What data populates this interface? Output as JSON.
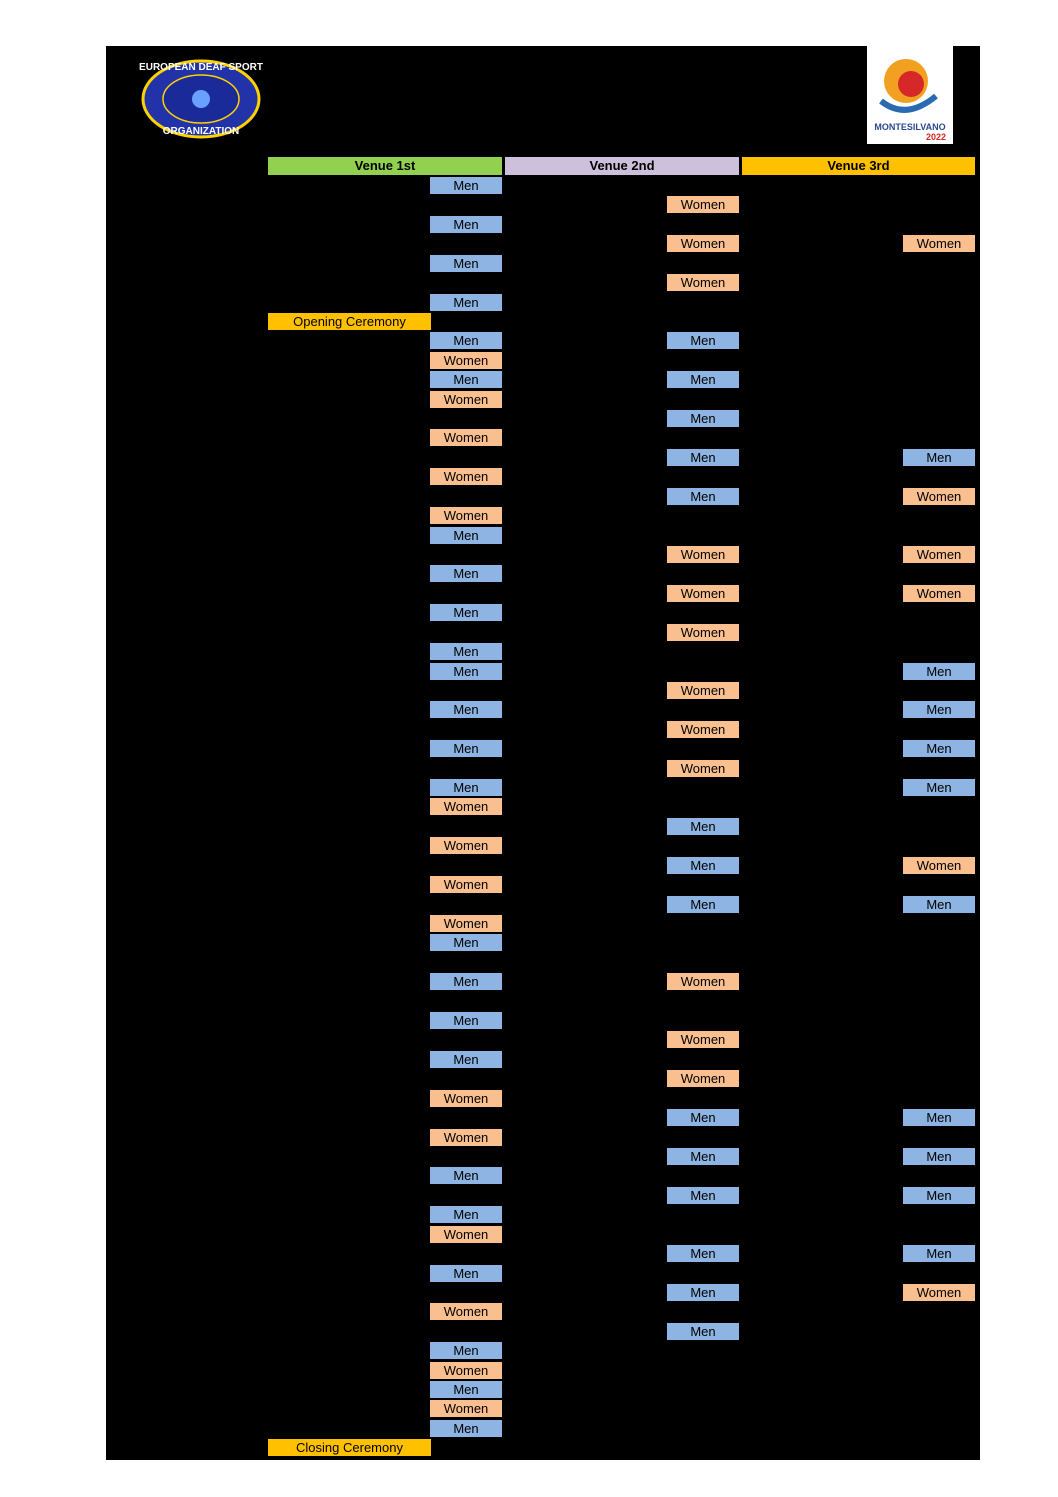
{
  "logos": {
    "edso_top": "EUROPEAN DEAF SPORT",
    "edso_bottom": "ORGANIZATION",
    "city": "MONTESILVANO",
    "year": "2022"
  },
  "venues": [
    "Venue 1st",
    "Venue 2nd",
    "Venue 3rd"
  ],
  "rows": [
    {
      "venue1": "Men"
    },
    {
      "venue2": "Women"
    },
    {
      "venue1": "Men"
    },
    {
      "venue2": "Women",
      "venue3": "Women"
    },
    {
      "venue1": "Men"
    },
    {
      "venue2": "Women"
    },
    {
      "venue1": "Men"
    },
    {
      "ceremony": "Opening Ceremony"
    },
    {
      "venue1": "Men",
      "venue2": "Men"
    },
    {
      "venue1": "Women"
    },
    {
      "venue1": "Men",
      "venue2": "Men"
    },
    {
      "venue1": "Women"
    },
    {
      "venue2": "Men"
    },
    {
      "venue1": "Women"
    },
    {
      "venue2": "Men",
      "venue3": "Men"
    },
    {
      "venue1": "Women"
    },
    {
      "venue2": "Men",
      "venue3": "Women"
    },
    {
      "venue1": "Women"
    },
    {
      "venue1": "Men"
    },
    {
      "venue2": "Women",
      "venue3": "Women"
    },
    {
      "venue1": "Men"
    },
    {
      "venue2": "Women",
      "venue3": "Women"
    },
    {
      "venue1": "Men"
    },
    {
      "venue2": "Women"
    },
    {
      "venue1": "Men"
    },
    {
      "venue1": "Men",
      "venue3": "Men"
    },
    {
      "venue2": "Women"
    },
    {
      "venue1": "Men",
      "venue3": "Men"
    },
    {
      "venue2": "Women"
    },
    {
      "venue1": "Men",
      "venue3": "Men"
    },
    {
      "venue2": "Women"
    },
    {
      "venue1": "Men",
      "venue3": "Men"
    },
    {
      "venue1": "Women"
    },
    {
      "venue2": "Men"
    },
    {
      "venue1": "Women"
    },
    {
      "venue2": "Men",
      "venue3": "Women"
    },
    {
      "venue1": "Women"
    },
    {
      "venue2": "Men",
      "venue3": "Men"
    },
    {
      "venue1": "Women"
    },
    {
      "venue1": "Men"
    },
    {},
    {
      "venue1": "Men",
      "venue2": "Women"
    },
    {},
    {
      "venue1": "Men"
    },
    {
      "venue2": "Women"
    },
    {
      "venue1": "Men"
    },
    {
      "venue2": "Women"
    },
    {
      "venue1": "Women"
    },
    {
      "venue2": "Men",
      "venue3": "Men"
    },
    {
      "venue1": "Women"
    },
    {
      "venue2": "Men",
      "venue3": "Men"
    },
    {
      "venue1": "Men"
    },
    {
      "venue2": "Men",
      "venue3": "Men"
    },
    {
      "venue1": "Men"
    },
    {
      "venue1": "Women"
    },
    {
      "venue2": "Men",
      "venue3": "Men"
    },
    {
      "venue1": "Men"
    },
    {
      "venue2": "Men",
      "venue3": "Women"
    },
    {
      "venue1": "Women"
    },
    {
      "venue2": "Men"
    },
    {
      "venue1": "Men"
    },
    {
      "venue1": "Women"
    },
    {
      "venue1": "Men"
    },
    {
      "venue1": "Women"
    },
    {
      "venue1": "Men"
    },
    {
      "ceremony": "Closing Ceremony"
    }
  ]
}
